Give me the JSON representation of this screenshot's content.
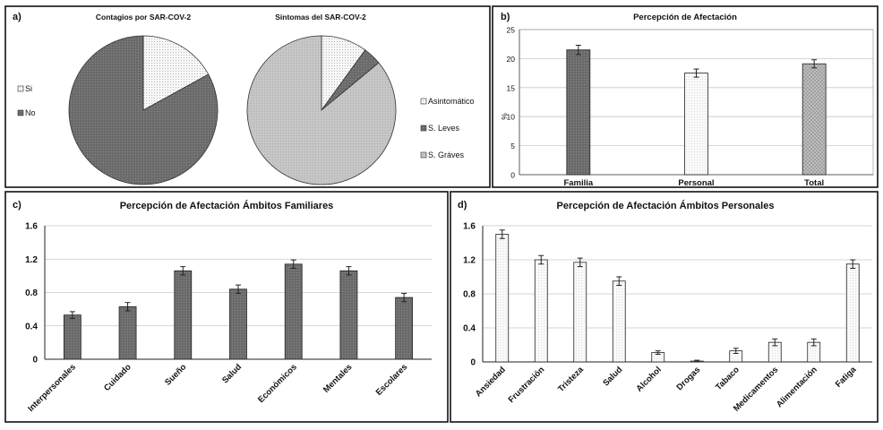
{
  "panels": {
    "a": {
      "tag": "a)"
    },
    "b": {
      "tag": "b)"
    },
    "c": {
      "tag": "c)"
    },
    "d": {
      "tag": "d)"
    }
  },
  "chart_data": [
    {
      "id": "a1",
      "type": "pie",
      "title": "Contagios por SAR-COV-2",
      "labels": [
        "Si",
        "No"
      ],
      "values": [
        17,
        83
      ],
      "legend": [
        "Si",
        "No"
      ],
      "colors": [
        "#f2f2f2",
        "#707070"
      ],
      "legend_position": "left"
    },
    {
      "id": "a2",
      "type": "pie",
      "title": "Sintomas del SAR-COV-2",
      "labels": [
        "Asintomático",
        "S. Leves",
        "S. Gráves"
      ],
      "values": [
        10,
        4,
        86
      ],
      "legend": [
        "Asintomático",
        "S. Leves",
        "S. Gráves"
      ],
      "colors": [
        "#f2f2f2",
        "#707070",
        "#c4c4c4"
      ],
      "legend_position": "right"
    },
    {
      "id": "b",
      "type": "bar",
      "title": "Percepción de Afectación",
      "ylabel": "%",
      "categories": [
        "Familia",
        "Personal",
        "Total"
      ],
      "values": [
        21.5,
        17.5,
        19.1
      ],
      "errors": [
        0.8,
        0.7,
        0.7
      ],
      "ylim": [
        0,
        25
      ],
      "yticks": [
        "0",
        "5",
        "10",
        "15",
        "20",
        "25"
      ],
      "grid": true,
      "colors": [
        "#707070",
        "#f0f0f0",
        "#bdbdbd"
      ]
    },
    {
      "id": "c",
      "type": "bar",
      "title": "Percepción de Afectación Ámbitos Familiares",
      "categories": [
        "Interpersonales",
        "Cuidado",
        "Sueño",
        "Salud",
        "Económicos",
        "Mentales",
        "Escolares"
      ],
      "values": [
        0.53,
        0.63,
        1.06,
        0.84,
        1.14,
        1.06,
        0.74
      ],
      "errors": [
        0.04,
        0.05,
        0.05,
        0.05,
        0.05,
        0.05,
        0.05
      ],
      "ylim": [
        0,
        1.6
      ],
      "yticks": [
        "0",
        "0.4",
        "0.8",
        "1.2",
        "1.6"
      ],
      "grid": true,
      "color": "#777777"
    },
    {
      "id": "d",
      "type": "bar",
      "title": "Percepción de Afectación Ámbitos Personales",
      "categories": [
        "Ansiedad",
        "Frustración",
        "Tristeza",
        "Salud",
        "Alcohol",
        "Drogas",
        "Tabaco",
        "Medicamentos",
        "Alimentación",
        "Fatiga"
      ],
      "values": [
        1.5,
        1.2,
        1.17,
        0.95,
        0.11,
        0.01,
        0.13,
        0.23,
        0.23,
        1.15
      ],
      "errors": [
        0.05,
        0.05,
        0.05,
        0.05,
        0.02,
        0.01,
        0.03,
        0.04,
        0.04,
        0.05
      ],
      "ylim": [
        0,
        1.6
      ],
      "yticks": [
        "0",
        "0.4",
        "0.8",
        "1.2",
        "1.6"
      ],
      "grid": true,
      "color": "#f4f4f4"
    }
  ]
}
